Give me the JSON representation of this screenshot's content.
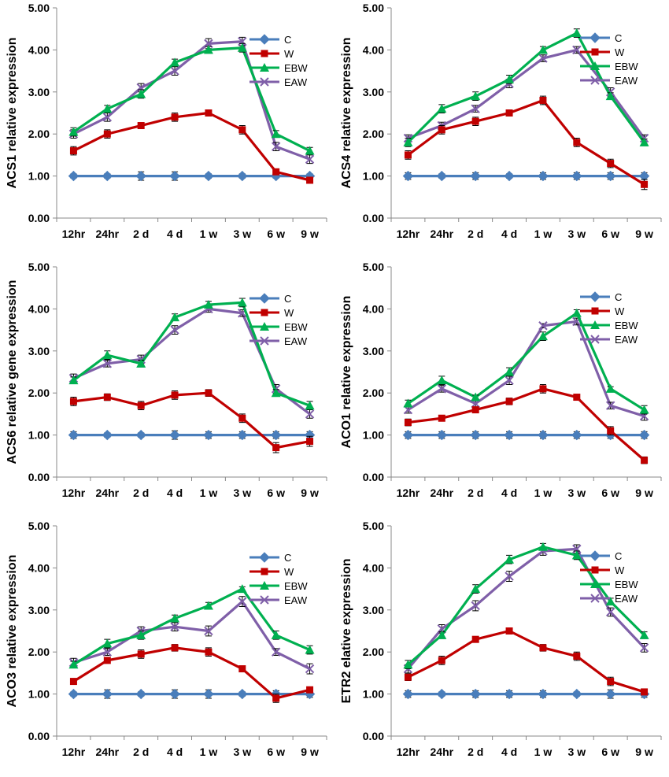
{
  "categories": [
    "12hr",
    "24hr",
    "2 d",
    "4 d",
    "1 w",
    "3 w",
    "6 w",
    "9 w"
  ],
  "series_styles": [
    {
      "name": "C",
      "color": "#4a7ebb",
      "marker": "diamond"
    },
    {
      "name": "W",
      "color": "#c00000",
      "marker": "square"
    },
    {
      "name": "EBW",
      "color": "#00b050",
      "marker": "triangle"
    },
    {
      "name": "EAW",
      "color": "#7f5fa8",
      "marker": "x"
    }
  ],
  "chart_data": [
    {
      "type": "line",
      "ylabel": "ACS1 relative expression",
      "ylim": [
        0,
        5
      ],
      "yticks": [
        "0.00",
        "1.00",
        "2.00",
        "3.00",
        "4.00",
        "5.00"
      ],
      "categories": [
        "12hr",
        "24hr",
        "2 d",
        "4 d",
        "1 w",
        "3 w",
        "6 w",
        "9 w"
      ],
      "legend_position": "top-right",
      "series": [
        {
          "name": "C",
          "values": [
            1.0,
            1.0,
            1.0,
            1.0,
            1.0,
            1.0,
            1.0,
            1.0
          ],
          "errors": [
            0.05,
            0.05,
            0.1,
            0.1,
            0.05,
            0.05,
            0.05,
            0.05
          ]
        },
        {
          "name": "W",
          "values": [
            1.6,
            2.0,
            2.2,
            2.4,
            2.5,
            2.1,
            1.1,
            0.9
          ],
          "errors": [
            0.1,
            0.1,
            0.05,
            0.1,
            0.05,
            0.1,
            0.05,
            0.05
          ]
        },
        {
          "name": "EBW",
          "values": [
            2.05,
            2.6,
            2.95,
            3.7,
            4.0,
            4.05,
            2.0,
            1.6
          ],
          "errors": [
            0.1,
            0.08,
            0.1,
            0.08,
            0.08,
            0.1,
            0.08,
            0.08
          ]
        },
        {
          "name": "EAW",
          "values": [
            2.0,
            2.4,
            3.1,
            3.5,
            4.15,
            4.2,
            1.7,
            1.4
          ],
          "errors": [
            0.1,
            0.1,
            0.1,
            0.1,
            0.12,
            0.1,
            0.1,
            0.1
          ]
        }
      ]
    },
    {
      "type": "line",
      "ylabel": "ACS4 relative expression",
      "ylim": [
        0,
        5
      ],
      "yticks": [
        "0.00",
        "1.00",
        "2.00",
        "3.00",
        "4.00",
        "5.00"
      ],
      "categories": [
        "12hr",
        "24hr",
        "2 d",
        "4 d",
        "1 w",
        "3 w",
        "6 w",
        "9 w"
      ],
      "legend_position": "top-right",
      "series": [
        {
          "name": "C",
          "values": [
            1.0,
            1.0,
            1.0,
            1.0,
            1.0,
            1.0,
            1.0,
            1.0
          ],
          "errors": [
            0.08,
            0.05,
            0.08,
            0.05,
            0.08,
            0.08,
            0.08,
            0.08
          ]
        },
        {
          "name": "W",
          "values": [
            1.5,
            2.1,
            2.3,
            2.5,
            2.8,
            1.8,
            1.3,
            0.8
          ],
          "errors": [
            0.1,
            0.1,
            0.1,
            0.05,
            0.1,
            0.1,
            0.1,
            0.12
          ]
        },
        {
          "name": "EBW",
          "values": [
            1.8,
            2.6,
            2.9,
            3.3,
            4.0,
            4.4,
            2.9,
            1.8
          ],
          "errors": [
            0.1,
            0.1,
            0.1,
            0.1,
            0.08,
            0.1,
            0.08,
            0.08
          ]
        },
        {
          "name": "EAW",
          "values": [
            1.9,
            2.2,
            2.6,
            3.2,
            3.8,
            4.0,
            3.0,
            1.9
          ],
          "errors": [
            0.08,
            0.08,
            0.08,
            0.1,
            0.08,
            0.08,
            0.1,
            0.08
          ]
        }
      ]
    },
    {
      "type": "line",
      "ylabel": "ACS6 relative gene expression",
      "ylim": [
        0,
        5
      ],
      "yticks": [
        "0.00",
        "1.00",
        "2.00",
        "3.00",
        "4.00",
        "5.00"
      ],
      "categories": [
        "12hr",
        "24hr",
        "2 d",
        "4 d",
        "1 w",
        "3 w",
        "6 w",
        "9 w"
      ],
      "legend_position": "top-right",
      "series": [
        {
          "name": "C",
          "values": [
            1.0,
            1.0,
            1.0,
            1.0,
            1.0,
            1.0,
            1.0,
            1.0
          ],
          "errors": [
            0.08,
            0.05,
            0.05,
            0.1,
            0.08,
            0.08,
            0.08,
            0.08
          ]
        },
        {
          "name": "W",
          "values": [
            1.8,
            1.9,
            1.7,
            1.95,
            2.0,
            1.4,
            0.7,
            0.85
          ],
          "errors": [
            0.1,
            0.08,
            0.1,
            0.1,
            0.08,
            0.1,
            0.12,
            0.12
          ]
        },
        {
          "name": "EBW",
          "values": [
            2.3,
            2.9,
            2.7,
            3.8,
            4.1,
            4.15,
            2.0,
            1.7
          ],
          "errors": [
            0.08,
            0.1,
            0.08,
            0.08,
            0.08,
            0.1,
            0.08,
            0.1
          ]
        },
        {
          "name": "EAW",
          "values": [
            2.35,
            2.7,
            2.8,
            3.5,
            4.0,
            3.9,
            2.1,
            1.5
          ],
          "errors": [
            0.1,
            0.08,
            0.1,
            0.1,
            0.08,
            0.08,
            0.1,
            0.1
          ]
        }
      ]
    },
    {
      "type": "line",
      "ylabel": "ACO1 relative expression",
      "ylim": [
        0,
        5
      ],
      "yticks": [
        "0.00",
        "1.00",
        "2.00",
        "3.00",
        "4.00",
        "5.00"
      ],
      "categories": [
        "12hr",
        "24hr",
        "2 d",
        "4 d",
        "1 w",
        "3 w",
        "6 w",
        "9 w"
      ],
      "legend_position": "top-right",
      "series": [
        {
          "name": "C",
          "values": [
            1.0,
            1.0,
            1.0,
            1.0,
            1.0,
            1.0,
            1.0,
            1.0
          ],
          "errors": [
            0.08,
            0.08,
            0.08,
            0.08,
            0.08,
            0.08,
            0.08,
            0.08
          ]
        },
        {
          "name": "W",
          "values": [
            1.3,
            1.4,
            1.6,
            1.8,
            2.1,
            1.9,
            1.1,
            0.4
          ],
          "errors": [
            0.08,
            0.05,
            0.05,
            0.08,
            0.1,
            0.05,
            0.1,
            0.08
          ]
        },
        {
          "name": "EBW",
          "values": [
            1.75,
            2.3,
            1.9,
            2.5,
            3.35,
            3.9,
            2.1,
            1.6
          ],
          "errors": [
            0.08,
            0.1,
            0.05,
            0.1,
            0.1,
            0.08,
            0.05,
            0.1
          ]
        },
        {
          "name": "EAW",
          "values": [
            1.6,
            2.1,
            1.75,
            2.3,
            3.6,
            3.7,
            1.7,
            1.45
          ],
          "errors": [
            0.08,
            0.08,
            0.08,
            0.1,
            0.05,
            0.08,
            0.08,
            0.1
          ]
        }
      ]
    },
    {
      "type": "line",
      "ylabel": "ACO3 relative expression",
      "ylim": [
        0,
        5
      ],
      "yticks": [
        "0.00",
        "1.00",
        "2.00",
        "3.00",
        "4.00",
        "5.00"
      ],
      "categories": [
        "12hr",
        "24hr",
        "2 d",
        "4 d",
        "1 w",
        "3 w",
        "6 w",
        "9 w"
      ],
      "legend_position": "top-right",
      "series": [
        {
          "name": "C",
          "values": [
            1.0,
            1.0,
            1.0,
            1.0,
            1.0,
            1.0,
            1.0,
            1.0
          ],
          "errors": [
            0.05,
            0.1,
            0.05,
            0.1,
            0.1,
            0.05,
            0.08,
            0.08
          ]
        },
        {
          "name": "W",
          "values": [
            1.3,
            1.8,
            1.95,
            2.1,
            2.0,
            1.6,
            0.9,
            1.1
          ],
          "errors": [
            0.05,
            0.05,
            0.1,
            0.08,
            0.1,
            0.05,
            0.1,
            0.05
          ]
        },
        {
          "name": "EBW",
          "values": [
            1.7,
            2.2,
            2.4,
            2.8,
            3.1,
            3.5,
            2.4,
            2.05
          ],
          "errors": [
            0.08,
            0.1,
            0.1,
            0.08,
            0.08,
            0.05,
            0.1,
            0.1
          ]
        },
        {
          "name": "EAW",
          "values": [
            1.75,
            2.0,
            2.5,
            2.6,
            2.5,
            3.2,
            2.0,
            1.6
          ],
          "errors": [
            0.1,
            0.08,
            0.1,
            0.1,
            0.12,
            0.12,
            0.08,
            0.12
          ]
        }
      ]
    },
    {
      "type": "line",
      "ylabel": "ETR2 elative expression",
      "ylim": [
        0,
        5
      ],
      "yticks": [
        "0.00",
        "1.00",
        "2.00",
        "3.00",
        "4.00",
        "5.00"
      ],
      "categories": [
        "12hr",
        "24hr",
        "2 d",
        "4 d",
        "1 w",
        "3 w",
        "6 w",
        "9 w"
      ],
      "legend_position": "top-right",
      "series": [
        {
          "name": "C",
          "values": [
            1.0,
            1.0,
            1.0,
            1.0,
            1.0,
            1.0,
            1.0,
            1.0
          ],
          "errors": [
            0.08,
            0.05,
            0.08,
            0.08,
            0.08,
            0.05,
            0.1,
            0.08
          ]
        },
        {
          "name": "W",
          "values": [
            1.4,
            1.8,
            2.3,
            2.5,
            2.1,
            1.9,
            1.3,
            1.05
          ],
          "errors": [
            0.08,
            0.1,
            0.05,
            0.05,
            0.08,
            0.1,
            0.1,
            0.05
          ]
        },
        {
          "name": "EBW",
          "values": [
            1.7,
            2.4,
            3.5,
            4.2,
            4.5,
            4.3,
            3.2,
            2.4
          ],
          "errors": [
            0.1,
            0.08,
            0.1,
            0.1,
            0.08,
            0.1,
            0.08,
            0.08
          ]
        },
        {
          "name": "EAW",
          "values": [
            1.6,
            2.55,
            3.1,
            3.8,
            4.4,
            4.45,
            2.95,
            2.1
          ],
          "errors": [
            0.1,
            0.1,
            0.12,
            0.12,
            0.1,
            0.1,
            0.1,
            0.1
          ]
        }
      ]
    }
  ]
}
